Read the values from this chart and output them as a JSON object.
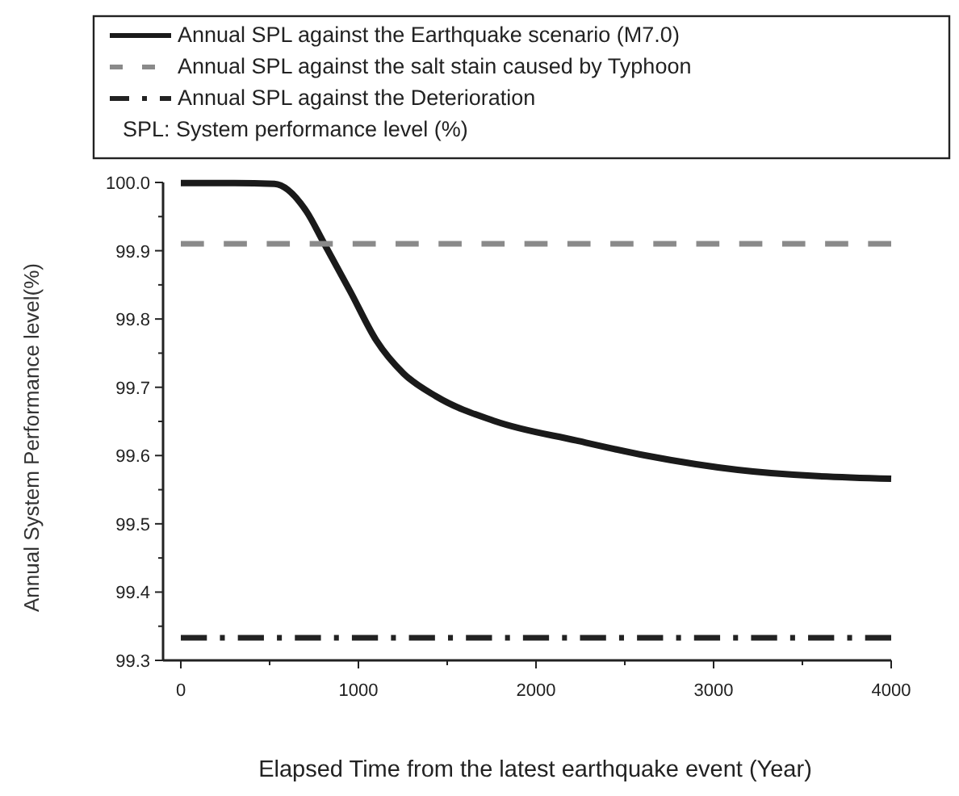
{
  "chart_data": {
    "type": "line",
    "xlabel": "Elapsed Time from the latest earthquake event (Year)",
    "ylabel": "Annual System Performance level(%)",
    "xlim": [
      -100,
      4000
    ],
    "ylim": [
      99.3,
      100.0
    ],
    "xticks": [
      0,
      {
        "value": 500,
        "label": null
      },
      1000,
      {
        "value": 1500,
        "label": null
      },
      2000,
      {
        "value": 2500,
        "label": null
      },
      3000,
      {
        "value": 3500,
        "label": null
      },
      4000
    ],
    "yticks": [
      99.3,
      {
        "value": 99.35,
        "label": null
      },
      99.4,
      {
        "value": 99.45,
        "label": null
      },
      99.5,
      {
        "value": 99.55,
        "label": null
      },
      99.6,
      {
        "value": 99.65,
        "label": null
      },
      99.7,
      {
        "value": 99.75,
        "label": null
      },
      99.8,
      {
        "value": 99.85,
        "label": null
      },
      99.9,
      {
        "value": 99.95,
        "label": null
      },
      {
        "value": 100.0,
        "label": "100.0"
      }
    ],
    "grid": false,
    "legend": "top",
    "marker": "none",
    "annotations": [
      "SPL: System performance level (%)"
    ],
    "series": [
      {
        "name": "Annual SPL against the Earthquake scenario (M7.0)",
        "color": "#1a1a1a",
        "line_style": "solid",
        "x": [
          0,
          300,
          527,
          709,
          800,
          955,
          1100,
          1255,
          1436,
          1773,
          2227,
          2618,
          3136,
          4000
        ],
        "values": [
          99.999,
          99.999,
          99.998,
          99.957,
          99.914,
          99.84,
          99.769,
          99.72,
          99.687,
          99.65,
          99.622,
          99.6,
          99.579,
          99.566
        ]
      },
      {
        "name": "Annual SPL against the salt stain caused by Typhoon",
        "color": "#8a8a8a",
        "line_style": "dashed",
        "x": [
          0,
          4000
        ],
        "values": [
          99.91,
          99.91
        ]
      },
      {
        "name": "Annual SPL against the Deterioration",
        "color": "#222222",
        "line_style": "dashdot",
        "x": [
          0,
          4000
        ],
        "values": [
          99.333,
          99.333
        ]
      }
    ]
  }
}
